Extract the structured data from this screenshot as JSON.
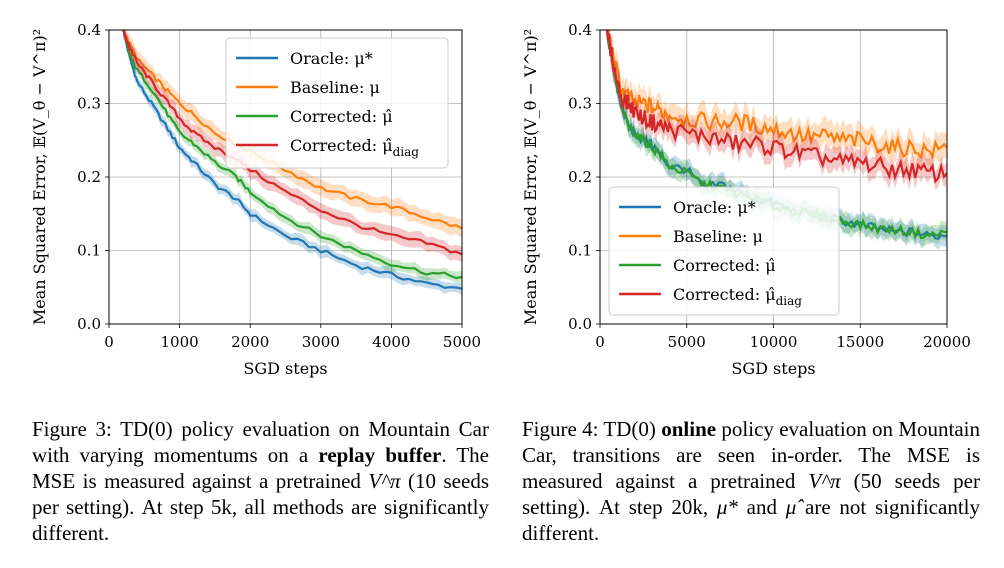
{
  "colors": {
    "oracle": "#1f77b4",
    "baseline": "#ff7f0e",
    "corrected": "#2ca02c",
    "corrected_diag": "#d62728"
  },
  "chart_data": [
    {
      "type": "line",
      "xlabel": "SGD steps",
      "ylabel": "Mean Squared Error, 𝔼(V_θ − V^π)²",
      "xlim": [
        0,
        5000
      ],
      "ylim": [
        0,
        0.4
      ],
      "xticks": [
        "0",
        "1000",
        "2000",
        "3000",
        "4000",
        "5000"
      ],
      "yticks": [
        "0.0",
        "0.1",
        "0.2",
        "0.3",
        "0.4"
      ],
      "grid": true,
      "legend_position": "top-right",
      "x": [
        200,
        300,
        400,
        600,
        800,
        1000,
        1200,
        1500,
        1800,
        2000,
        2500,
        3000,
        3500,
        4000,
        4500,
        5000
      ],
      "series": [
        {
          "name": "Oracle: μ*",
          "color_key": "oracle",
          "values": [
            0.4,
            0.36,
            0.33,
            0.3,
            0.27,
            0.24,
            0.22,
            0.19,
            0.17,
            0.15,
            0.12,
            0.1,
            0.08,
            0.067,
            0.055,
            0.048
          ],
          "band": 0.006
        },
        {
          "name": "Baseline: μ",
          "color_key": "baseline",
          "values": [
            0.4,
            0.38,
            0.36,
            0.34,
            0.32,
            0.3,
            0.285,
            0.26,
            0.245,
            0.235,
            0.21,
            0.185,
            0.17,
            0.16,
            0.145,
            0.13
          ],
          "band": 0.009
        },
        {
          "name": "Corrected: μ̂",
          "color_key": "corrected",
          "values": [
            0.4,
            0.365,
            0.345,
            0.32,
            0.29,
            0.26,
            0.245,
            0.22,
            0.2,
            0.18,
            0.145,
            0.12,
            0.1,
            0.082,
            0.07,
            0.064
          ],
          "band": 0.006
        },
        {
          "name": "Corrected: μ̂_diag",
          "color_key": "corrected_diag",
          "values": [
            0.4,
            0.375,
            0.355,
            0.33,
            0.305,
            0.28,
            0.26,
            0.24,
            0.225,
            0.21,
            0.18,
            0.155,
            0.135,
            0.12,
            0.11,
            0.095
          ],
          "band": 0.008
        }
      ]
    },
    {
      "type": "line",
      "xlabel": "SGD steps",
      "ylabel": "Mean Squared Error, 𝔼(V_θ − V^π)²",
      "xlim": [
        0,
        20000
      ],
      "ylim": [
        0,
        0.4
      ],
      "xticks": [
        "0",
        "5000",
        "10000",
        "15000",
        "20000"
      ],
      "yticks": [
        "0.0",
        "0.1",
        "0.2",
        "0.3",
        "0.4"
      ],
      "grid": true,
      "legend_position": "lower-left",
      "x": [
        400,
        800,
        1200,
        1600,
        2000,
        2500,
        3000,
        3500,
        4000,
        5000,
        6000,
        7000,
        8000,
        9000,
        10000,
        11000,
        12000,
        13000,
        14000,
        15000,
        16000,
        17000,
        18000,
        19000,
        20000
      ],
      "series": [
        {
          "name": "Oracle: μ*",
          "color_key": "oracle",
          "values": [
            0.4,
            0.34,
            0.3,
            0.27,
            0.26,
            0.25,
            0.245,
            0.23,
            0.215,
            0.21,
            0.185,
            0.19,
            0.18,
            0.17,
            0.165,
            0.155,
            0.15,
            0.145,
            0.14,
            0.135,
            0.13,
            0.125,
            0.125,
            0.12,
            0.12
          ],
          "band": 0.01,
          "noise": 0.006
        },
        {
          "name": "Baseline: μ",
          "color_key": "baseline",
          "values": [
            0.4,
            0.36,
            0.32,
            0.31,
            0.3,
            0.3,
            0.295,
            0.29,
            0.285,
            0.28,
            0.275,
            0.275,
            0.275,
            0.27,
            0.265,
            0.26,
            0.255,
            0.255,
            0.25,
            0.25,
            0.245,
            0.24,
            0.24,
            0.235,
            0.24
          ],
          "band": 0.014,
          "noise": 0.012
        },
        {
          "name": "Corrected: μ̂",
          "color_key": "corrected",
          "values": [
            0.4,
            0.34,
            0.3,
            0.27,
            0.26,
            0.25,
            0.24,
            0.23,
            0.215,
            0.205,
            0.19,
            0.185,
            0.175,
            0.17,
            0.16,
            0.155,
            0.15,
            0.145,
            0.14,
            0.135,
            0.13,
            0.128,
            0.125,
            0.12,
            0.125
          ],
          "band": 0.01,
          "noise": 0.006
        },
        {
          "name": "Corrected: μ̂_diag",
          "color_key": "corrected_diag",
          "values": [
            0.4,
            0.35,
            0.31,
            0.3,
            0.29,
            0.28,
            0.275,
            0.27,
            0.265,
            0.26,
            0.255,
            0.25,
            0.245,
            0.245,
            0.24,
            0.235,
            0.23,
            0.225,
            0.22,
            0.22,
            0.215,
            0.21,
            0.21,
            0.205,
            0.205
          ],
          "band": 0.012,
          "noise": 0.012
        }
      ]
    }
  ],
  "captions": {
    "fig3": {
      "label": "Figure 3:",
      "t1": " TD(0) policy evaluation on Mountain Car with varying momentums on a ",
      "bold": "replay buffer",
      "t2": ". The MSE is measured against a pretrained ",
      "sym": "V^π",
      "t3": " (10 seeds per setting). At step 5k, all methods are significantly different."
    },
    "fig4": {
      "label": "Figure 4:",
      "t1": " TD(0) ",
      "bold": "online",
      "t2": " policy evaluation on Mountain Car, transitions are seen in-order. The MSE is measured against a pretrained ",
      "sym": "V^π",
      "t3": " (50 seeds per setting). At step 20k, ",
      "sym2": "μ*",
      "t4": " and ",
      "sym3": "μ̂",
      "t5": " are not significantly different."
    }
  }
}
